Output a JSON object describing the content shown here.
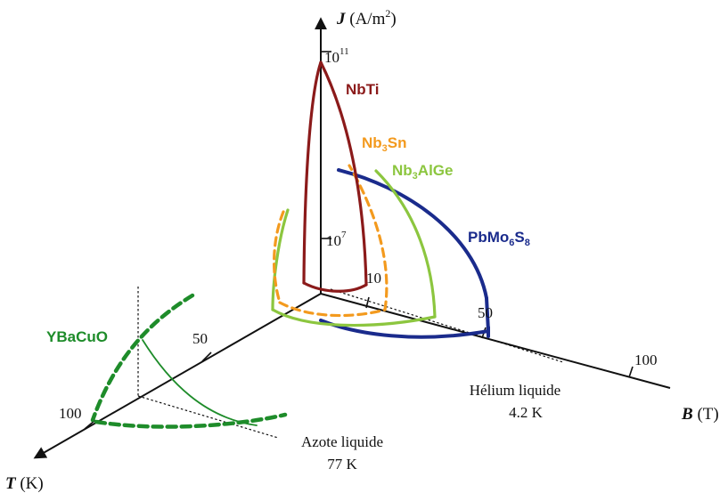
{
  "axes": {
    "j": {
      "symbol": "J",
      "unit_open": " (A/m",
      "unit_exp": "2",
      "unit_close": ")",
      "ticks": [
        {
          "base": "10",
          "exp": "11"
        },
        {
          "base": "10",
          "exp": "7"
        }
      ]
    },
    "b": {
      "symbol": "B",
      "unit": " (T)",
      "ticks": [
        "10",
        "50",
        "100"
      ]
    },
    "t": {
      "symbol": "T",
      "unit": " (K)",
      "ticks": [
        "50",
        "100"
      ]
    }
  },
  "materials": {
    "nbti": {
      "text": "NbTi",
      "color": "#8b1a1a"
    },
    "nb3sn": {
      "parts": [
        "Nb",
        "3",
        "Sn"
      ],
      "color": "#f39a1e"
    },
    "nb3alge": {
      "parts": [
        "Nb",
        "3",
        "AlGe"
      ],
      "color": "#8cc63f"
    },
    "pbmo6s8": {
      "parts": [
        "PbMo",
        "6",
        "S",
        "8"
      ],
      "color": "#1a2b8c"
    },
    "ybacuo": {
      "text": "YBaCuO",
      "color": "#1e8c2a"
    }
  },
  "annotations": {
    "helium_line1": "Hélium liquide",
    "helium_line2": "4.2 K",
    "azote_line1": "Azote liquide",
    "azote_line2": "77 K"
  }
}
